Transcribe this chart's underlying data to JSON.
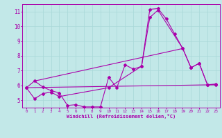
{
  "xlabel": "Windchill (Refroidissement éolien,°C)",
  "bg_color": "#c2e8e8",
  "grid_color": "#a8d8d8",
  "line_color": "#aa00aa",
  "xlim": [
    -0.5,
    23.5
  ],
  "ylim": [
    4.5,
    11.5
  ],
  "xticks": [
    0,
    1,
    2,
    3,
    4,
    5,
    6,
    7,
    8,
    9,
    10,
    11,
    12,
    13,
    14,
    15,
    16,
    17,
    18,
    19,
    20,
    21,
    22,
    23
  ],
  "yticks": [
    5,
    6,
    7,
    8,
    9,
    10,
    11
  ],
  "series1_x": [
    0,
    1,
    2,
    3,
    4,
    5,
    6,
    7,
    8,
    9,
    10,
    11,
    12,
    13,
    14,
    15,
    16,
    17,
    18,
    19,
    20,
    21,
    22,
    23
  ],
  "series1_y": [
    5.85,
    6.3,
    5.9,
    5.65,
    5.5,
    4.65,
    4.7,
    4.55,
    4.55,
    4.55,
    6.55,
    5.85,
    7.4,
    7.1,
    7.3,
    11.15,
    11.2,
    10.5,
    9.5,
    8.5,
    7.2,
    7.5,
    6.05,
    6.1
  ],
  "series2_x": [
    0,
    1,
    2,
    3,
    4,
    10,
    14,
    15,
    16,
    19,
    20,
    21,
    22,
    23
  ],
  "series2_y": [
    5.85,
    5.1,
    5.45,
    5.55,
    5.25,
    5.85,
    7.3,
    10.6,
    11.1,
    8.5,
    7.2,
    7.5,
    6.05,
    6.05
  ],
  "series3_x": [
    0,
    23
  ],
  "series3_y": [
    5.85,
    6.05
  ],
  "series4_x": [
    1,
    19
  ],
  "series4_y": [
    6.3,
    8.5
  ],
  "marker": "D",
  "markersize": 2.0,
  "linewidth": 0.8
}
